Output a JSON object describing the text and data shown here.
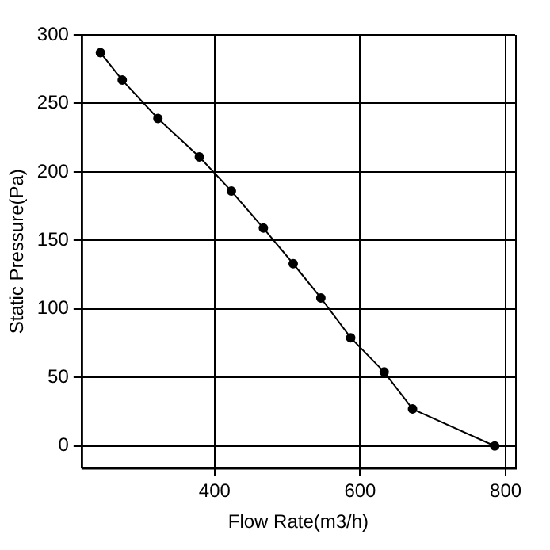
{
  "chart_data": {
    "type": "line",
    "xlabel": "Flow Rate(m3/h)",
    "ylabel": "Static Pressure(Pa)",
    "x": [
      243,
      273,
      322,
      379,
      423,
      467,
      508,
      546,
      587,
      633,
      672,
      785
    ],
    "series": [
      {
        "color": "#000000",
        "values": [
          287,
          267,
          239,
          211,
          186,
          159,
          133,
          108,
          79,
          54,
          27,
          0
        ]
      }
    ],
    "xlim": [
      217,
      813
    ],
    "xticks": [
      400,
      600,
      800
    ],
    "ylim": [
      -16,
      300
    ],
    "yticks": [
      0,
      50,
      100,
      150,
      200,
      250,
      300
    ],
    "grid": true,
    "marker": "circle",
    "line_style": "solid",
    "legend": false
  }
}
